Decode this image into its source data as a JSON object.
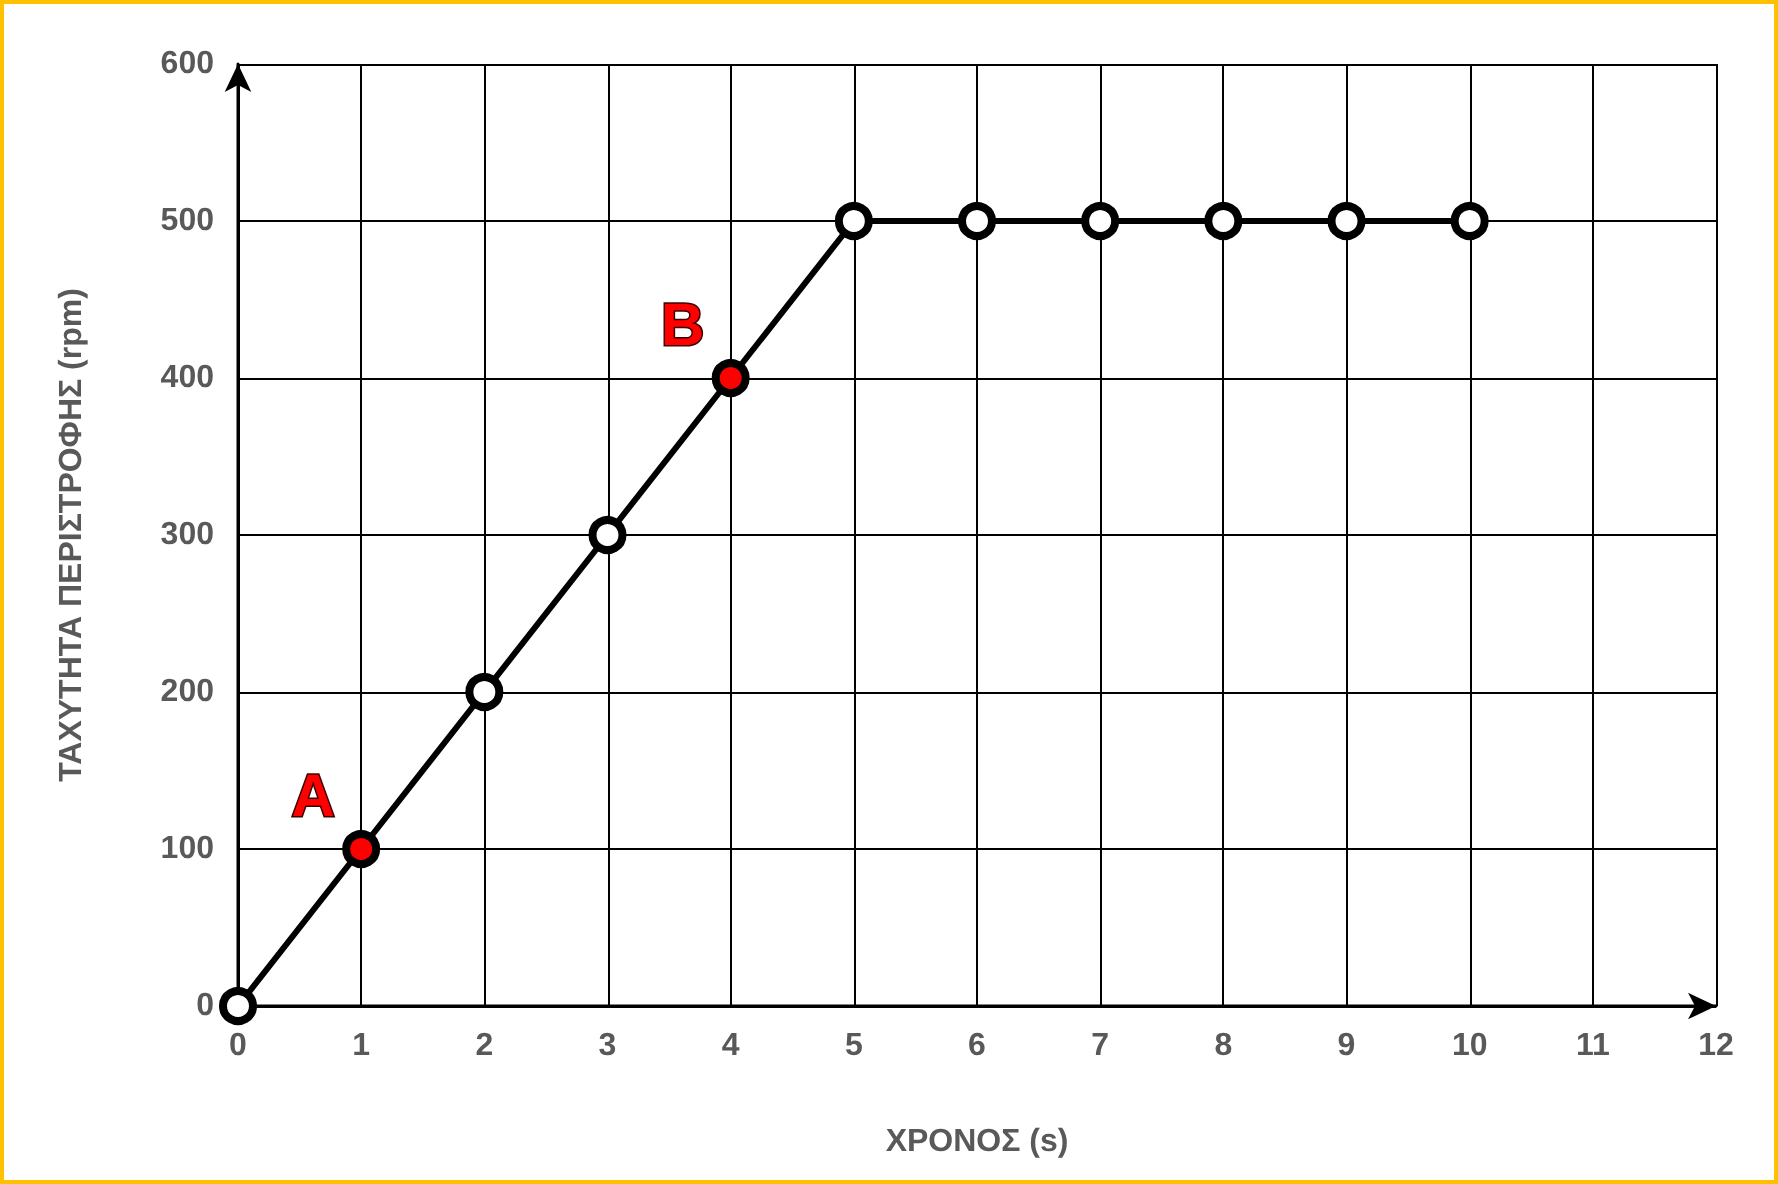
{
  "chart_data": {
    "type": "line",
    "xlabel": "ΧΡΟΝΟΣ (s)",
    "ylabel": "ΤΑΧΥΤΗΤΑ ΠΕΡΙΣΤΡΟΦΗΣ (rpm)",
    "x": [
      0,
      1,
      2,
      3,
      4,
      5,
      6,
      7,
      8,
      9,
      10
    ],
    "series": [
      {
        "color": "#000000",
        "values": [
          0,
          100,
          200,
          300,
          400,
          500,
          500,
          500,
          500,
          500,
          500
        ],
        "colors": [
          "#ffffff",
          "#ff0000",
          "#ffffff",
          "#ffffff",
          "#ff0000",
          "#ffffff",
          "#ffffff",
          "#ffffff",
          "#ffffff",
          "#ffffff",
          "#ffffff"
        ]
      }
    ],
    "annotations": [
      {
        "text": "A",
        "x": 1,
        "y": 100
      },
      {
        "text": "B",
        "x": 4,
        "y": 400
      }
    ],
    "xlim": [
      0,
      12
    ],
    "xticks": [
      0,
      1,
      2,
      3,
      4,
      5,
      6,
      7,
      8,
      9,
      10,
      11,
      12
    ],
    "ylim": [
      0,
      600
    ],
    "yticks": [
      0,
      100,
      200,
      300,
      400,
      500,
      600
    ],
    "grid": true,
    "marker": "circle",
    "line_style": "solid"
  }
}
